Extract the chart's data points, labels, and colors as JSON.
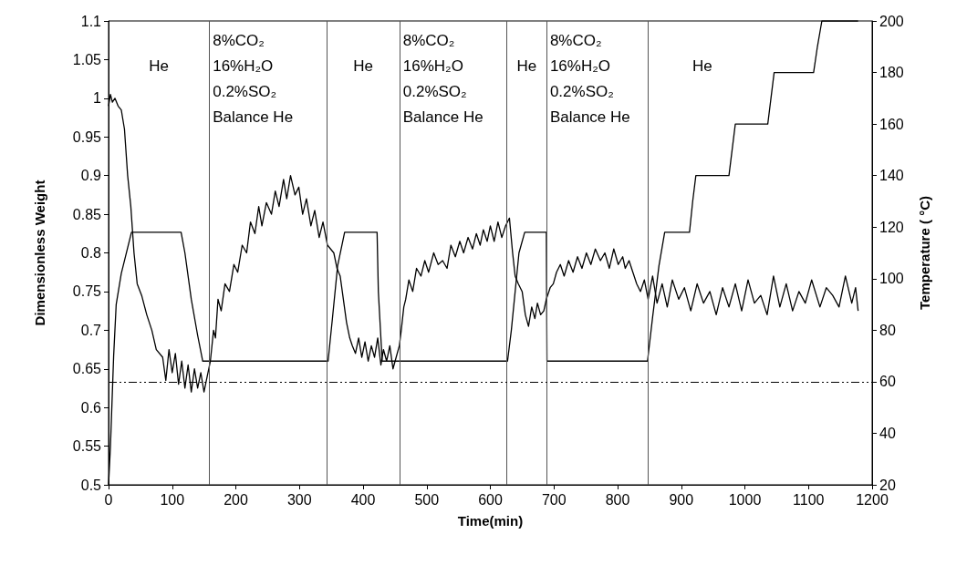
{
  "chart_data": {
    "type": "line",
    "xlabel": "Time(min)",
    "ylabel": "Dimensionless Weight",
    "y2label": "Temperature ( °C)",
    "xlim": [
      0,
      1200
    ],
    "xticks": [
      0,
      100,
      200,
      300,
      400,
      500,
      600,
      700,
      800,
      900,
      1000,
      1100,
      1200
    ],
    "ylim": [
      0.5,
      1.1
    ],
    "yticks": [
      0.5,
      0.55,
      0.6,
      0.65,
      0.7,
      0.75,
      0.8,
      0.85,
      0.9,
      0.95,
      1,
      1.05,
      1.1
    ],
    "y2lim": [
      20,
      200
    ],
    "y2ticks": [
      20,
      40,
      60,
      80,
      100,
      120,
      140,
      160,
      180,
      200
    ],
    "grid": false,
    "marker": "none",
    "line_style": "solid",
    "series": [
      {
        "color": "#000000",
        "x": [
          0,
          3,
          6,
          10,
          15,
          20,
          25,
          30,
          35,
          40,
          45,
          52,
          60,
          68,
          75,
          85,
          90,
          95,
          100,
          105,
          110,
          115,
          120,
          125,
          130,
          135,
          140,
          145,
          150,
          155,
          160,
          165,
          168,
          172,
          177,
          183,
          190,
          197,
          203,
          210,
          217,
          223,
          230,
          236,
          241,
          248,
          256,
          262,
          268,
          275,
          280,
          286,
          293,
          299,
          305,
          311,
          318,
          324,
          331,
          337,
          344,
          349,
          354,
          359,
          364,
          369,
          374,
          379,
          383,
          388,
          393,
          398,
          403,
          408,
          413,
          418,
          423,
          428,
          432,
          437,
          442,
          447,
          452,
          457,
          460,
          464,
          467,
          472,
          478,
          484,
          491,
          497,
          503,
          511,
          518,
          525,
          532,
          538,
          545,
          552,
          558,
          565,
          572,
          578,
          584,
          589,
          595,
          600,
          606,
          612,
          618,
          624,
          630,
          635,
          639,
          644,
          650,
          655,
          660,
          665,
          670,
          674,
          679,
          684,
          688,
          694,
          699,
          704,
          710,
          716,
          723,
          730,
          737,
          744,
          751,
          758,
          765,
          773,
          780,
          787,
          794,
          801,
          808,
          812,
          818,
          824,
          830,
          836,
          842,
          848,
          855,
          862,
          870,
          878,
          886,
          896,
          905,
          915,
          925,
          935,
          945,
          955,
          965,
          975,
          985,
          995,
          1005,
          1015,
          1025,
          1035,
          1045,
          1055,
          1065,
          1075,
          1085,
          1095,
          1105,
          1118,
          1128,
          1138,
          1148,
          1158,
          1168,
          1174,
          1178
        ],
        "values": [
          0.99,
          1.005,
          0.995,
          1.0,
          0.99,
          0.985,
          0.96,
          0.9,
          0.86,
          0.8,
          0.76,
          0.745,
          0.72,
          0.7,
          0.675,
          0.665,
          0.635,
          0.675,
          0.645,
          0.67,
          0.63,
          0.66,
          0.625,
          0.655,
          0.62,
          0.65,
          0.625,
          0.645,
          0.62,
          0.64,
          0.66,
          0.7,
          0.69,
          0.74,
          0.725,
          0.76,
          0.75,
          0.785,
          0.775,
          0.81,
          0.8,
          0.84,
          0.825,
          0.86,
          0.835,
          0.865,
          0.85,
          0.88,
          0.86,
          0.895,
          0.87,
          0.9,
          0.875,
          0.885,
          0.85,
          0.87,
          0.835,
          0.855,
          0.82,
          0.84,
          0.81,
          0.805,
          0.8,
          0.78,
          0.77,
          0.74,
          0.71,
          0.69,
          0.68,
          0.67,
          0.69,
          0.665,
          0.685,
          0.66,
          0.68,
          0.665,
          0.69,
          0.655,
          0.675,
          0.66,
          0.68,
          0.65,
          0.665,
          0.68,
          0.7,
          0.73,
          0.74,
          0.765,
          0.75,
          0.78,
          0.77,
          0.79,
          0.775,
          0.8,
          0.785,
          0.79,
          0.78,
          0.81,
          0.795,
          0.815,
          0.8,
          0.82,
          0.805,
          0.825,
          0.81,
          0.83,
          0.815,
          0.835,
          0.815,
          0.84,
          0.82,
          0.835,
          0.845,
          0.8,
          0.77,
          0.76,
          0.75,
          0.72,
          0.705,
          0.73,
          0.715,
          0.735,
          0.72,
          0.725,
          0.74,
          0.755,
          0.76,
          0.775,
          0.785,
          0.77,
          0.79,
          0.775,
          0.795,
          0.78,
          0.8,
          0.785,
          0.805,
          0.79,
          0.8,
          0.78,
          0.805,
          0.785,
          0.795,
          0.78,
          0.79,
          0.775,
          0.76,
          0.75,
          0.765,
          0.74,
          0.77,
          0.735,
          0.76,
          0.73,
          0.765,
          0.74,
          0.755,
          0.725,
          0.76,
          0.735,
          0.75,
          0.72,
          0.755,
          0.73,
          0.76,
          0.725,
          0.765,
          0.735,
          0.745,
          0.72,
          0.77,
          0.73,
          0.76,
          0.725,
          0.75,
          0.735,
          0.765,
          0.73,
          0.755,
          0.745,
          0.73,
          0.77,
          0.735,
          0.755,
          0.725
        ]
      },
      {
        "color": "#000000",
        "axis": "y2",
        "x": [
          0,
          3,
          8,
          12,
          20,
          30,
          36,
          50,
          80,
          114,
          120,
          130,
          140,
          148,
          200,
          250,
          300,
          345,
          352,
          360,
          371,
          400,
          422,
          424,
          430,
          500,
          550,
          600,
          627,
          633,
          645,
          654,
          688,
          689,
          750,
          800,
          847,
          855,
          865,
          874,
          913,
          918,
          923,
          975,
          980,
          985,
          1036,
          1041,
          1046,
          1108,
          1114,
          1121,
          1178
        ],
        "values": [
          20,
          35,
          70,
          90,
          102,
          112,
          118,
          118,
          118,
          118,
          110,
          92,
          78,
          68,
          68,
          68,
          68,
          68,
          85,
          105,
          118,
          118,
          118,
          95,
          68,
          68,
          68,
          68,
          68,
          80,
          110,
          118,
          118,
          68,
          68,
          68,
          68,
          85,
          105,
          118,
          118,
          130,
          140,
          140,
          150,
          160,
          160,
          170,
          180,
          180,
          190,
          200,
          200
        ]
      }
    ],
    "ref_lines": [
      {
        "axis": "x",
        "value": 158,
        "color": "#555555"
      },
      {
        "axis": "x",
        "value": 343,
        "color": "#555555"
      },
      {
        "axis": "x",
        "value": 457,
        "color": "#555555"
      },
      {
        "axis": "x",
        "value": 626,
        "color": "#555555"
      },
      {
        "axis": "x",
        "value": 688,
        "color": "#555555"
      },
      {
        "axis": "x",
        "value": 847,
        "color": "#555555"
      },
      {
        "axis": "y2",
        "value": 60,
        "color": "#000000",
        "line_style": "dashed"
      }
    ],
    "annotations": [
      "He",
      "8%CO₂\n16%H₂O\n0.2%SO₂\nBalance He",
      "He",
      "8%CO₂\n16%H₂O\n0.2%SO₂\nBalance He",
      "He",
      "8%CO₂\n16%H₂O\n0.2%SO₂\nBalance He",
      "He"
    ]
  }
}
